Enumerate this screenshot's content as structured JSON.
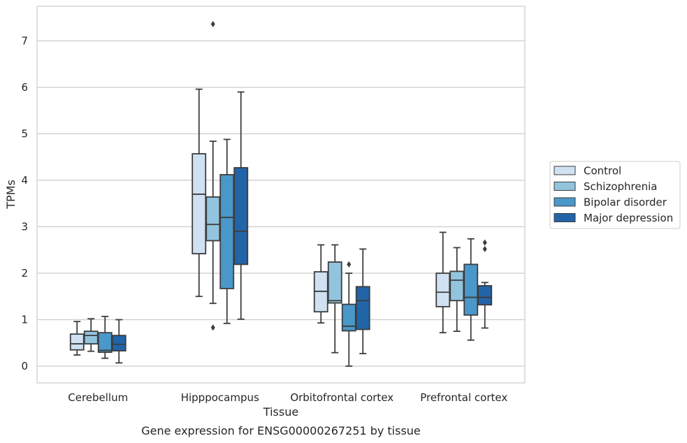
{
  "chart_data": {
    "type": "box",
    "xlabel": "Tissue",
    "ylabel": "TPMs",
    "caption": "Gene expression for ENSG00000267251 by tissue",
    "categories": [
      "Cerebellum",
      "Hipppocampus",
      "Orbitofrontal cortex",
      "Prefrontal cortex"
    ],
    "ylim": [
      -0.35,
      7.75
    ],
    "yticks": [
      0,
      1,
      2,
      3,
      4,
      5,
      6,
      7
    ],
    "grid": true,
    "legend_position": "right",
    "series": [
      {
        "name": "Control",
        "color": "#cfe1f2",
        "boxes": [
          {
            "whislo": 0.24,
            "q1": 0.35,
            "med": 0.48,
            "q3": 0.69,
            "whishi": 0.96,
            "fliers": []
          },
          {
            "whislo": 1.5,
            "q1": 2.42,
            "med": 3.7,
            "q3": 4.57,
            "whishi": 5.96,
            "fliers": []
          },
          {
            "whislo": 0.93,
            "q1": 1.17,
            "med": 1.61,
            "q3": 2.03,
            "whishi": 2.61,
            "fliers": []
          },
          {
            "whislo": 0.72,
            "q1": 1.28,
            "med": 1.59,
            "q3": 2.0,
            "whishi": 2.88,
            "fliers": []
          }
        ]
      },
      {
        "name": "Schizophrenia",
        "color": "#93c4de",
        "boxes": [
          {
            "whislo": 0.32,
            "q1": 0.48,
            "med": 0.66,
            "q3": 0.75,
            "whishi": 1.02,
            "fliers": []
          },
          {
            "whislo": 1.35,
            "q1": 2.7,
            "med": 3.05,
            "q3": 3.64,
            "whishi": 4.84,
            "fliers": [
              0.83,
              7.36
            ]
          },
          {
            "whislo": 0.29,
            "q1": 1.36,
            "med": 1.41,
            "q3": 2.24,
            "whishi": 2.61,
            "fliers": []
          },
          {
            "whislo": 0.75,
            "q1": 1.41,
            "med": 1.85,
            "q3": 2.04,
            "whishi": 2.55,
            "fliers": []
          }
        ]
      },
      {
        "name": "Bipolar disorder",
        "color": "#4a98c9",
        "boxes": [
          {
            "whislo": 0.17,
            "q1": 0.3,
            "med": 0.34,
            "q3": 0.72,
            "whishi": 1.07,
            "fliers": []
          },
          {
            "whislo": 0.92,
            "q1": 1.67,
            "med": 3.2,
            "q3": 4.12,
            "whishi": 4.88,
            "fliers": []
          },
          {
            "whislo": 0.0,
            "q1": 0.76,
            "med": 0.86,
            "q3": 1.33,
            "whishi": 2.0,
            "fliers": [
              2.19
            ]
          },
          {
            "whislo": 0.56,
            "q1": 1.1,
            "med": 1.48,
            "q3": 2.19,
            "whishi": 2.74,
            "fliers": []
          }
        ]
      },
      {
        "name": "Major depression",
        "color": "#2264a8",
        "boxes": [
          {
            "whislo": 0.07,
            "q1": 0.33,
            "med": 0.47,
            "q3": 0.66,
            "whishi": 1.0,
            "fliers": []
          },
          {
            "whislo": 1.01,
            "q1": 2.19,
            "med": 2.9,
            "q3": 4.27,
            "whishi": 5.9,
            "fliers": []
          },
          {
            "whislo": 0.27,
            "q1": 0.79,
            "med": 1.41,
            "q3": 1.71,
            "whishi": 2.52,
            "fliers": []
          },
          {
            "whislo": 0.82,
            "q1": 1.32,
            "med": 1.48,
            "q3": 1.73,
            "whishi": 1.8,
            "fliers": [
              2.52,
              2.66
            ]
          }
        ]
      }
    ]
  }
}
